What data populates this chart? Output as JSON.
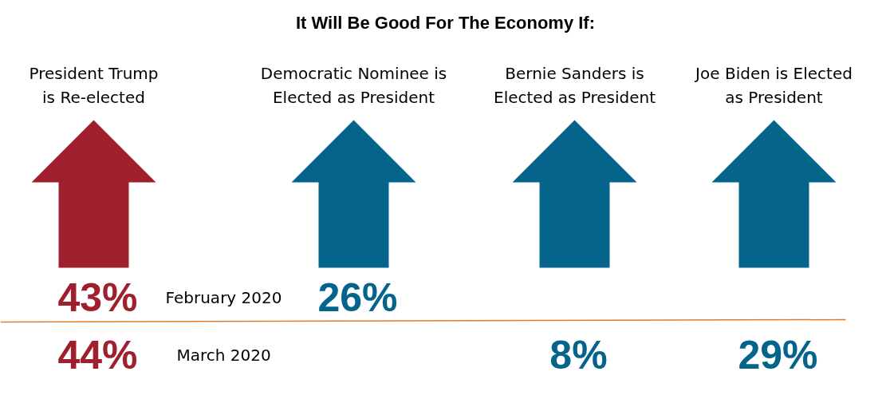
{
  "chart_data": {
    "type": "other",
    "title": "It Will Be Good For The Economy If:",
    "categories": [
      "President Trump\nis Re-elected",
      "Democratic Nominee is\nElected as President",
      "Bernie Sanders is\nElected as President",
      "Joe Biden is Elected\nas President"
    ],
    "series": [
      {
        "name": "February 2020",
        "colors": [
          "#a01f2c",
          "#05648c",
          "#05648c",
          "#05648c"
        ],
        "values": [
          43,
          26,
          null,
          null
        ],
        "value_labels": [
          "43%",
          "26%",
          null,
          null
        ]
      },
      {
        "name": "March 2020",
        "colors": [
          "#a01f2c",
          "#05648c",
          "#05648c",
          "#05648c"
        ],
        "values": [
          44,
          null,
          8,
          29
        ],
        "value_labels": [
          "44%",
          null,
          "8%",
          "29%"
        ]
      }
    ]
  }
}
